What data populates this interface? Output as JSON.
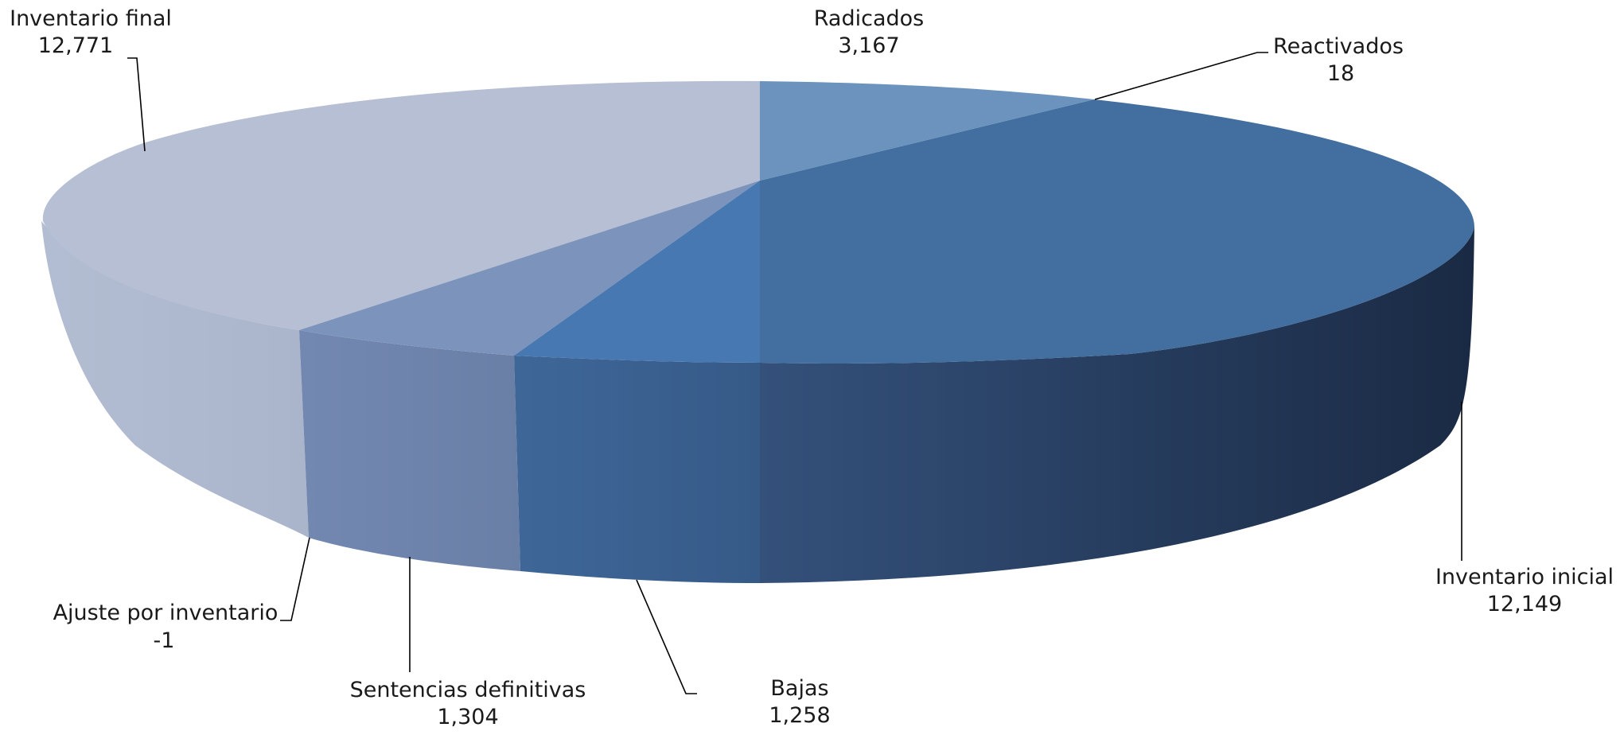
{
  "chart_data": {
    "type": "pie",
    "style": "3d-exploded-oval",
    "title": "",
    "slices": [
      {
        "label": "Radicados",
        "value_text": "3,167",
        "value": 3167,
        "color": "#6b93bd"
      },
      {
        "label": "Reactivados",
        "value_text": "18",
        "value": 18,
        "color": "#6b93bd"
      },
      {
        "label": "Inventario inicial",
        "value_text": "12,149",
        "value": 12149,
        "color": "#426f9f"
      },
      {
        "label": "Bajas",
        "value_text": "1,258",
        "value": 1258,
        "color": "#4878b1"
      },
      {
        "label": "Sentencias definitivas",
        "value_text": "1,304",
        "value": 1304,
        "color": "#7c93bb"
      },
      {
        "label": "Ajuste por inventario",
        "value_text": "-1",
        "value": -1,
        "color": "#b6bfd3"
      },
      {
        "label": "Inventario final",
        "value_text": "12,771",
        "value": 12771,
        "color": "#b6bfd3"
      }
    ],
    "legend": "none",
    "data_labels": "outside-with-leader-lines"
  }
}
